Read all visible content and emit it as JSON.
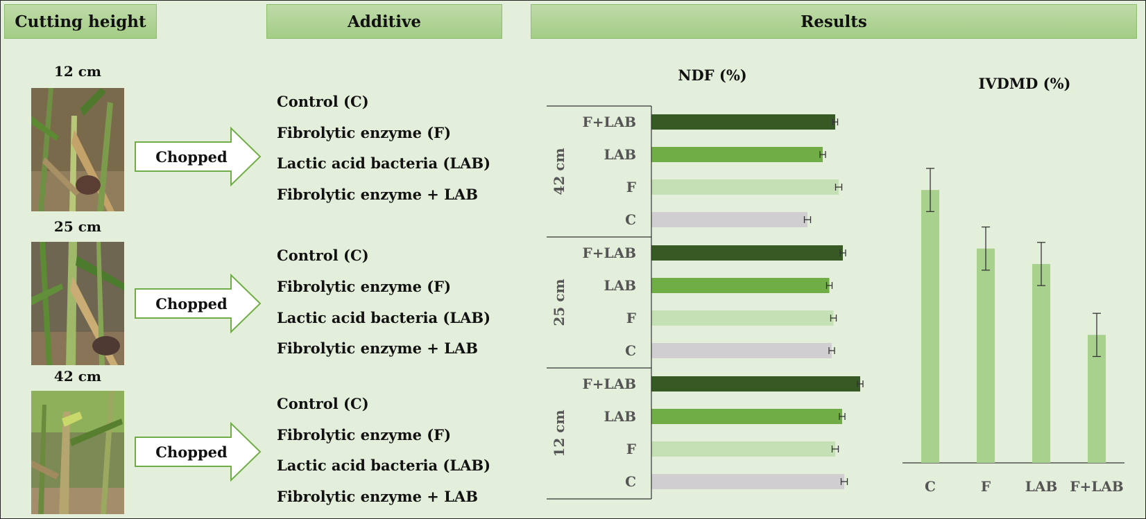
{
  "headers": {
    "cutting_height": "Cutting height",
    "additive": "Additive",
    "results": "Results"
  },
  "heights": [
    {
      "label": "12 cm"
    },
    {
      "label": "25 cm"
    },
    {
      "label": "42 cm"
    }
  ],
  "arrow_label": "Chopped",
  "additives": [
    "Control (C)",
    "Fibrolytic enzyme  (F)",
    "Lactic acid bacteria (LAB)",
    "Fibrolytic enzyme  + LAB"
  ],
  "colors": {
    "background": "#e4efdb",
    "header": "#a3cc85",
    "F+LAB": "#375a25",
    "LAB": "#71ad47",
    "F": "#c5e0b4",
    "C": "#d0ced0",
    "ivdmd": "#a9d18e"
  },
  "chart_data": [
    {
      "type": "bar",
      "orientation": "horizontal",
      "title": "NDF (%)",
      "groups": [
        {
          "name": "42 cm",
          "categories": [
            "F+LAB",
            "LAB",
            "F",
            "C"
          ],
          "values": [
            53.0,
            49.4,
            54.0,
            45.0
          ],
          "errors": [
            0.7,
            0.8,
            0.9,
            0.9
          ]
        },
        {
          "name": "25 cm",
          "categories": [
            "F+LAB",
            "LAB",
            "F",
            "C"
          ],
          "values": [
            55.2,
            51.3,
            52.5,
            52.0
          ],
          "errors": [
            0.8,
            0.8,
            0.8,
            0.8
          ]
        },
        {
          "name": "12 cm",
          "categories": [
            "F+LAB",
            "LAB",
            "F",
            "C"
          ],
          "values": [
            60.2,
            55.0,
            53.0,
            55.6
          ],
          "errors": [
            0.8,
            0.8,
            0.9,
            0.9
          ]
        }
      ],
      "xlim": [
        0,
        70
      ]
    },
    {
      "type": "bar",
      "title": "IVDMD (%)",
      "categories": [
        "C",
        "F",
        "LAB",
        "F+LAB"
      ],
      "values": [
        88.5,
        69.5,
        64.5,
        41.5
      ],
      "errors": [
        7.0,
        7.0,
        7.0,
        7.0
      ],
      "ylim": [
        0,
        100
      ]
    }
  ]
}
